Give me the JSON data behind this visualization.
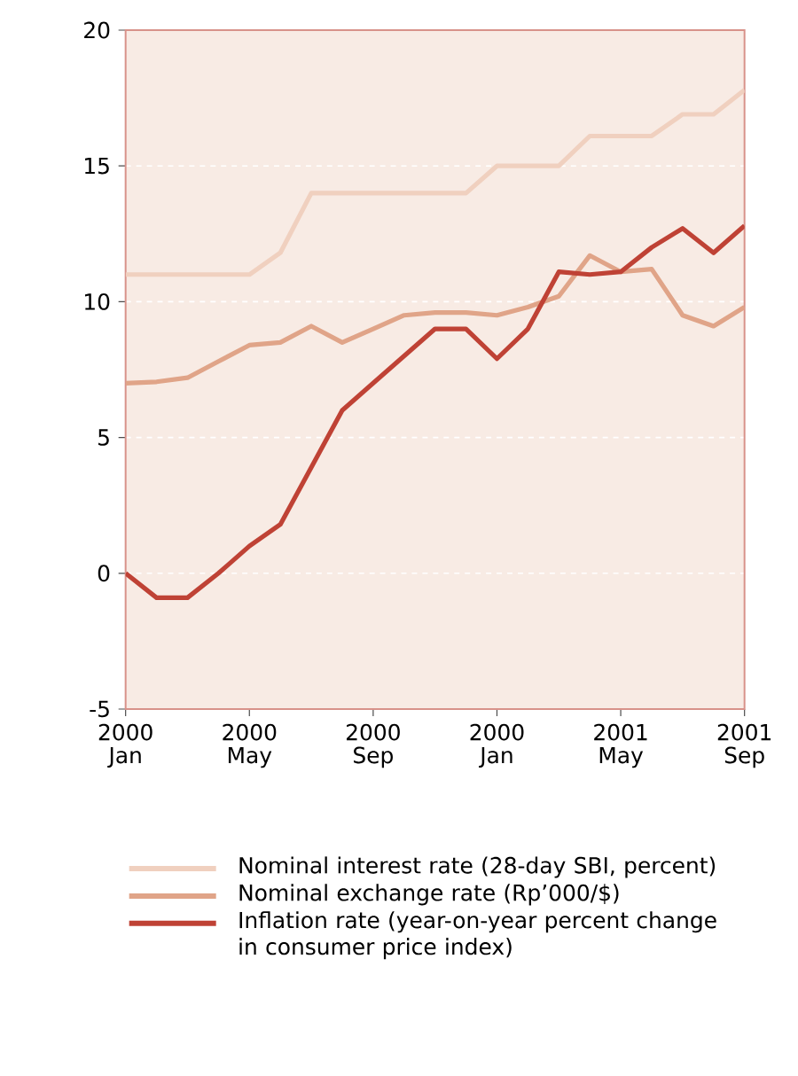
{
  "chart_data": {
    "type": "line",
    "categories": [
      "2000 Jan",
      null,
      null,
      null,
      "2000 May",
      null,
      null,
      null,
      "2000 Sep",
      null,
      null,
      null,
      "2000 Jan",
      null,
      null,
      null,
      "2001 May",
      null,
      null,
      null,
      "2001 Sep"
    ],
    "series": [
      {
        "name": "Nominal interest rate (28-day SBI, percent)",
        "color": "#f0d0bf",
        "values": [
          11.0,
          11.0,
          11.0,
          11.0,
          11.0,
          11.8,
          14.0,
          14.0,
          14.0,
          14.0,
          14.0,
          14.0,
          15.0,
          15.0,
          15.0,
          16.1,
          16.1,
          16.1,
          16.9,
          16.9,
          17.8
        ]
      },
      {
        "name": "Nominal exchange rate (Rp’000/$)",
        "color": "#e0a488",
        "values": [
          7.0,
          7.05,
          7.2,
          7.8,
          8.4,
          8.5,
          9.1,
          8.5,
          9.0,
          9.5,
          9.6,
          9.6,
          9.5,
          9.8,
          10.2,
          11.7,
          11.1,
          11.2,
          9.5,
          9.1,
          9.8
        ]
      },
      {
        "name": "Inflation rate (year-on-year percent change in consumer price index)",
        "color": "#bf4235",
        "values": [
          0.0,
          -0.9,
          -0.9,
          0.0,
          1.0,
          1.8,
          3.9,
          6.0,
          7.0,
          8.0,
          9.0,
          9.0,
          7.9,
          9.0,
          11.1,
          11.0,
          11.1,
          12.0,
          12.7,
          11.8,
          12.8
        ]
      }
    ],
    "ylim": [
      -5,
      20
    ],
    "yticks": [
      -5,
      0,
      5,
      10,
      15,
      20
    ],
    "grid": "y",
    "legend": "bottom",
    "marker": "none",
    "line_style": "solid"
  }
}
